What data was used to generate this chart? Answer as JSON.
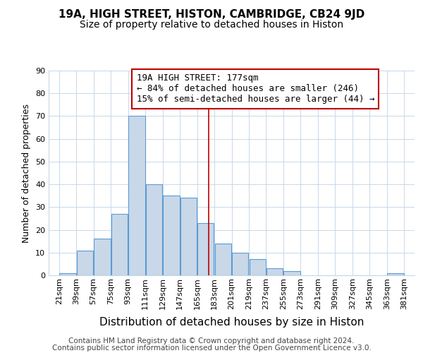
{
  "title": "19A, HIGH STREET, HISTON, CAMBRIDGE, CB24 9JD",
  "subtitle": "Size of property relative to detached houses in Histon",
  "xlabel": "Distribution of detached houses by size in Histon",
  "ylabel": "Number of detached properties",
  "bin_labels": [
    "21sqm",
    "39sqm",
    "57sqm",
    "75sqm",
    "93sqm",
    "111sqm",
    "129sqm",
    "147sqm",
    "165sqm",
    "183sqm",
    "201sqm",
    "219sqm",
    "237sqm",
    "255sqm",
    "273sqm",
    "291sqm",
    "309sqm",
    "327sqm",
    "345sqm",
    "363sqm",
    "381sqm"
  ],
  "bin_edges": [
    21,
    39,
    57,
    75,
    93,
    111,
    129,
    147,
    165,
    183,
    201,
    219,
    237,
    255,
    273,
    291,
    309,
    327,
    345,
    363,
    381
  ],
  "bar_heights": [
    1,
    11,
    16,
    27,
    70,
    40,
    35,
    34,
    23,
    14,
    10,
    7,
    3,
    2,
    0,
    0,
    0,
    0,
    0,
    1
  ],
  "bar_color": "#c8d8e8",
  "bar_edge_color": "#5b9bd5",
  "vline_x": 177,
  "vline_color": "#c00000",
  "ylim": [
    0,
    90
  ],
  "yticks": [
    0,
    10,
    20,
    30,
    40,
    50,
    60,
    70,
    80,
    90
  ],
  "annotation_title": "19A HIGH STREET: 177sqm",
  "annotation_line1": "← 84% of detached houses are smaller (246)",
  "annotation_line2": "15% of semi-detached houses are larger (44) →",
  "annotation_box_color": "#ffffff",
  "annotation_box_edge": "#c00000",
  "footer_line1": "Contains HM Land Registry data © Crown copyright and database right 2024.",
  "footer_line2": "Contains public sector information licensed under the Open Government Licence v3.0.",
  "title_fontsize": 11,
  "subtitle_fontsize": 10,
  "xlabel_fontsize": 11,
  "ylabel_fontsize": 9,
  "tick_fontsize": 8,
  "annotation_fontsize": 9,
  "footer_fontsize": 7.5
}
